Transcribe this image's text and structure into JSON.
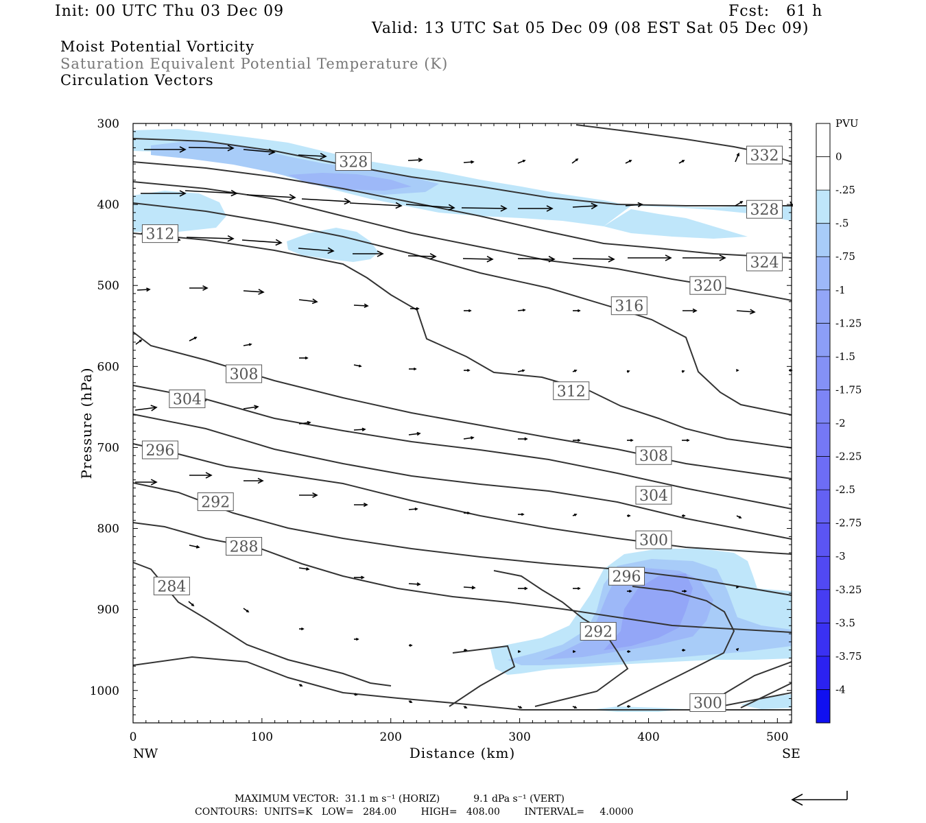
{
  "header": {
    "init": "Init: 00 UTC Thu 03 Dec 09",
    "fcst": "Fcst:   61 h",
    "valid": "Valid: 13 UTC Sat 05 Dec 09 (08 EST Sat 05 Dec 09)"
  },
  "titles": {
    "line1": "Moist Potential Vorticity",
    "line2": "Saturation Equivalent Potential Temperature (K)",
    "line3": "Circulation Vectors"
  },
  "footer": {
    "max_vector": "MAXIMUM VECTOR:  31.1 m s⁻¹ (HORIZ)           9.1 dPa s⁻¹ (VERT)",
    "contours": "CONTOURS:  UNITS=K   LOW=   284.00        HIGH=   408.00        INTERVAL=     4.0000"
  },
  "colors": {
    "contour": "#333333",
    "vector": "#000000",
    "pv_025": "#bfe6fa",
    "pv_05": "#a8ccf8",
    "pv_075": "#9db8f8",
    "pv_1": "#93a6f7"
  },
  "chart_data": {
    "type": "cross-section",
    "xlabel": "Distance (km)",
    "ylabel": "Pressure (hPa)",
    "xlim": [
      0,
      511
    ],
    "ylim": [
      1040,
      300
    ],
    "x_ticks": [
      0,
      100,
      200,
      300,
      400,
      500
    ],
    "y_ticks": [
      300,
      400,
      500,
      600,
      700,
      800,
      900,
      1000
    ],
    "x_end_labels": [
      "NW",
      "SE"
    ],
    "colorbar": {
      "unit": "PVU",
      "labels": [
        "0",
        "-.25",
        "-.5",
        "-.75",
        "-1",
        "-1.25",
        "-1.5",
        "-1.75",
        "-2",
        "-2.25",
        "-2.5",
        "-2.75",
        "-3",
        "-3.25",
        "-3.5",
        "-3.75",
        "-4"
      ],
      "colors": [
        "#ffffff",
        "#bfe6fa",
        "#a8ccf8",
        "#9db8f8",
        "#93a6f7",
        "#8c9ef7",
        "#8491f6",
        "#7d85f6",
        "#7578f5",
        "#6d6df5",
        "#6461f4",
        "#5b55f4",
        "#5149f3",
        "#463df2",
        "#3a31f2",
        "#2b22f1",
        "#1010f0"
      ]
    },
    "contour_labels": [
      {
        "text": "328",
        "x": 171,
        "y": 347
      },
      {
        "text": "332",
        "x": 490,
        "y": 339
      },
      {
        "text": "328",
        "x": 490,
        "y": 406
      },
      {
        "text": "324",
        "x": 490,
        "y": 471
      },
      {
        "text": "320",
        "x": 446,
        "y": 500
      },
      {
        "text": "316",
        "x": 385,
        "y": 525
      },
      {
        "text": "312",
        "x": 21,
        "y": 436
      },
      {
        "text": "312",
        "x": 340,
        "y": 630
      },
      {
        "text": "308",
        "x": 86,
        "y": 609
      },
      {
        "text": "304",
        "x": 42,
        "y": 640
      },
      {
        "text": "308",
        "x": 404,
        "y": 710
      },
      {
        "text": "296",
        "x": 21,
        "y": 703
      },
      {
        "text": "304",
        "x": 404,
        "y": 759
      },
      {
        "text": "292",
        "x": 64,
        "y": 767
      },
      {
        "text": "300",
        "x": 404,
        "y": 814
      },
      {
        "text": "288",
        "x": 86,
        "y": 822
      },
      {
        "text": "296",
        "x": 383,
        "y": 859
      },
      {
        "text": "284",
        "x": 30,
        "y": 871
      },
      {
        "text": "292",
        "x": 361,
        "y": 927
      },
      {
        "text": "300",
        "x": 446,
        "y": 1015
      }
    ]
  }
}
